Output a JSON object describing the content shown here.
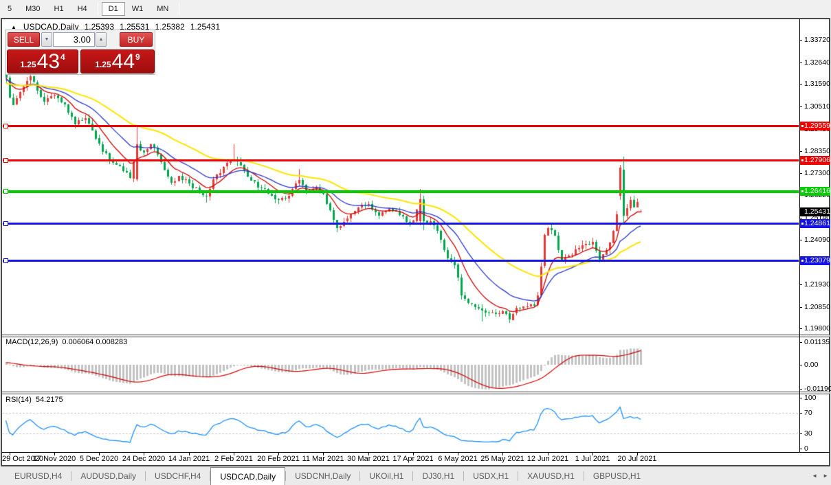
{
  "toolbar": {
    "timeframes": [
      {
        "label": "5",
        "active": false
      },
      {
        "label": "M30",
        "active": false
      },
      {
        "label": "H1",
        "active": false
      },
      {
        "label": "H4",
        "active": false
      },
      {
        "label": "D1",
        "active": true
      },
      {
        "label": "W1",
        "active": false
      },
      {
        "label": "MN",
        "active": false
      }
    ]
  },
  "chart": {
    "collapse_icon": "▲",
    "title": "USDCAD,Daily",
    "ohlc": {
      "open": "1.25393",
      "high": "1.25531",
      "low": "1.25382",
      "close": "1.25431"
    },
    "trade_widget": {
      "sell_label": "SELL",
      "buy_label": "BUY",
      "volume": "3.00",
      "volume_down_icon": "▼",
      "volume_up_icon": "▲",
      "sell_price_prefix": "1.25",
      "sell_price_big": "43",
      "sell_price_sup": "4",
      "buy_price_prefix": "1.25",
      "buy_price_big": "44",
      "buy_price_sup": "9"
    },
    "price_axis_ticks": [
      "1.33720",
      "1.32640",
      "1.31590",
      "1.30510",
      "1.29430",
      "1.28350",
      "1.27300",
      "1.26220",
      "1.25140",
      "1.24090",
      "1.23010",
      "1.21930",
      "1.20850",
      "1.19800"
    ],
    "price_tags": [
      {
        "text": "1.29559",
        "price": 1.29559,
        "bg": "#f20000",
        "handle": true
      },
      {
        "text": "1.27906",
        "price": 1.27906,
        "bg": "#f20000",
        "handle": true
      },
      {
        "text": "1.26416",
        "price": 1.26416,
        "bg": "#00cc00",
        "handle": true
      },
      {
        "text": "1.25431",
        "price": 1.25431,
        "bg": "#000000",
        "handle": false
      },
      {
        "text": "1.24861",
        "price": 1.24861,
        "bg": "#1414e8",
        "handle": true
      },
      {
        "text": "1.23079",
        "price": 1.23079,
        "bg": "#1414e8",
        "handle": true
      }
    ],
    "hlines": [
      {
        "price": 1.29559,
        "color": "#f20000",
        "thickness": 3
      },
      {
        "price": 1.27906,
        "color": "#f20000",
        "thickness": 3
      },
      {
        "price": 1.26416,
        "color": "#00cc00",
        "thickness": 4
      },
      {
        "price": 1.24861,
        "color": "#1414e8",
        "thickness": 3
      },
      {
        "price": 1.23079,
        "color": "#1414e8",
        "thickness": 3
      }
    ],
    "date_labels": [
      [
        "29 Oct 2020",
        1
      ],
      [
        "17 Nov 2020",
        14
      ],
      [
        "5 Dec 2020",
        27
      ],
      [
        "24 Dec 2020",
        40
      ],
      [
        "14 Jan 2021",
        53
      ],
      [
        "2 Feb 2021",
        66
      ],
      [
        "20 Feb 2021",
        79
      ],
      [
        "11 Mar 2021",
        92
      ],
      [
        "30 Mar 2021",
        105
      ],
      [
        "17 Apr 2021",
        118
      ],
      [
        "6 May 2021",
        131
      ],
      [
        "25 May 2021",
        144
      ],
      [
        "12 Jun 2021",
        157
      ],
      [
        "1 Jul 2021",
        170
      ],
      [
        "20 Jul 2021",
        183
      ]
    ],
    "macd": {
      "name": "MACD(12,26,9)",
      "values": "0.006064 0.008283",
      "axis": [
        "0.01135",
        "0.00",
        "-0.011904"
      ]
    },
    "rsi": {
      "name": "RSI(14)",
      "value": "54.2175",
      "axis": [
        "100",
        "70",
        "30",
        "0"
      ],
      "levels": [
        70,
        30
      ]
    }
  },
  "chart_data": {
    "type": "candlestick",
    "symbol": "USDCAD",
    "period": "Daily",
    "visible_range": {
      "price_min": 1.1956,
      "price_max": 1.3451,
      "first_date": "29 Oct 2020",
      "last_date": "20 Jul 2021"
    },
    "candle_count": 185,
    "close_anchors": [
      [
        0,
        1.319
      ],
      [
        1,
        1.3095
      ],
      [
        2,
        1.306
      ],
      [
        4,
        1.312
      ],
      [
        7,
        1.3195
      ],
      [
        9,
        1.313
      ],
      [
        11,
        1.3075
      ],
      [
        14,
        1.3105
      ],
      [
        17,
        1.306
      ],
      [
        20,
        1.2965
      ],
      [
        23,
        1.2995
      ],
      [
        25,
        1.2935
      ],
      [
        27,
        1.287
      ],
      [
        30,
        1.279
      ],
      [
        33,
        1.2763
      ],
      [
        36,
        1.2705
      ],
      [
        38,
        1.287
      ],
      [
        40,
        1.283
      ],
      [
        42,
        1.2868
      ],
      [
        44,
        1.282
      ],
      [
        46,
        1.2745
      ],
      [
        48,
        1.2683
      ],
      [
        50,
        1.2715
      ],
      [
        53,
        1.268
      ],
      [
        56,
        1.2633
      ],
      [
        58,
        1.2618
      ],
      [
        60,
        1.27
      ],
      [
        63,
        1.276
      ],
      [
        66,
        1.2795
      ],
      [
        68,
        1.2768
      ],
      [
        71,
        1.2695
      ],
      [
        74,
        1.2658
      ],
      [
        77,
        1.2622
      ],
      [
        79,
        1.26
      ],
      [
        82,
        1.262
      ],
      [
        85,
        1.2698
      ],
      [
        87,
        1.264
      ],
      [
        90,
        1.266
      ],
      [
        92,
        1.2628
      ],
      [
        94,
        1.255
      ],
      [
        96,
        1.2465
      ],
      [
        99,
        1.251
      ],
      [
        102,
        1.2565
      ],
      [
        105,
        1.258
      ],
      [
        108,
        1.2525
      ],
      [
        111,
        1.2558
      ],
      [
        114,
        1.2528
      ],
      [
        116,
        1.2494
      ],
      [
        118,
        1.25
      ],
      [
        120,
        1.2605
      ],
      [
        121,
        1.25
      ],
      [
        124,
        1.2478
      ],
      [
        126,
        1.2408
      ],
      [
        128,
        1.2318
      ],
      [
        130,
        1.2288
      ],
      [
        132,
        1.214
      ],
      [
        135,
        1.2098
      ],
      [
        138,
        1.2068
      ],
      [
        141,
        1.2058
      ],
      [
        144,
        1.2065
      ],
      [
        146,
        1.2022
      ],
      [
        148,
        1.208
      ],
      [
        151,
        1.2088
      ],
      [
        153,
        1.2092
      ],
      [
        154,
        1.214
      ],
      [
        155,
        1.228
      ],
      [
        156,
        1.243
      ],
      [
        157,
        1.2465
      ],
      [
        159,
        1.2428
      ],
      [
        161,
        1.2308
      ],
      [
        163,
        1.2332
      ],
      [
        166,
        1.2368
      ],
      [
        168,
        1.239
      ],
      [
        170,
        1.2398
      ],
      [
        172,
        1.2312
      ],
      [
        174,
        1.236
      ],
      [
        176,
        1.2452
      ],
      [
        177,
        1.253
      ],
      [
        178,
        1.2755
      ],
      [
        179,
        1.2525
      ],
      [
        180,
        1.256
      ],
      [
        181,
        1.26
      ],
      [
        182,
        1.2565
      ],
      [
        183,
        1.259
      ],
      [
        184,
        1.25431
      ]
    ],
    "candle_overrides": {
      "0": {
        "o": 1.322,
        "h": 1.3243,
        "l": 1.316,
        "c": 1.319
      },
      "7": {
        "h": 1.3235
      },
      "38": {
        "o": 1.27,
        "h": 1.2955,
        "l": 1.269,
        "c": 1.287
      },
      "58": {
        "l": 1.259
      },
      "66": {
        "h": 1.2868
      },
      "85": {
        "h": 1.2749
      },
      "120": {
        "o": 1.25,
        "h": 1.2655,
        "l": 1.248,
        "c": 1.2605
      },
      "121": {
        "o": 1.2605,
        "h": 1.262,
        "l": 1.2455,
        "c": 1.25
      },
      "138": {
        "l": 1.2013
      },
      "146": {
        "l": 1.2007
      },
      "155": {
        "o": 1.2142,
        "l": 1.213,
        "c": 1.228
      },
      "156": {
        "o": 1.228,
        "c": 1.243
      },
      "178": {
        "o": 1.2618,
        "h": 1.2768,
        "l": 1.26,
        "c": 1.2755
      },
      "179": {
        "o": 1.2747,
        "h": 1.2808,
        "l": 1.248,
        "c": 1.2525
      },
      "184": {
        "o": 1.25393,
        "h": 1.25531,
        "l": 1.25382,
        "c": 1.25431
      }
    },
    "colors": {
      "up_candle": "#e53935",
      "down_candle": "#00a54d",
      "ma_fast": "#cc0000",
      "ma_mid": "#2a35cc",
      "ma_slow": "#ffe400",
      "macd_hist": "#c2c2c2",
      "macd_signal": "#d40000",
      "rsi_line": "#1e90ff",
      "rsi_level_dash": "#c9c9c9"
    },
    "moving_averages": [
      {
        "type": "ema",
        "window": 9,
        "colorKey": "ma_fast"
      },
      {
        "type": "ema",
        "window": 20,
        "colorKey": "ma_mid"
      },
      {
        "type": "ema",
        "window": 45,
        "colorKey": "ma_slow"
      }
    ],
    "indicators": {
      "macd": {
        "fast": 12,
        "slow": 26,
        "signal": 9
      },
      "rsi": {
        "period": 14,
        "levels": [
          70,
          30
        ]
      }
    }
  },
  "tabs": {
    "items": [
      {
        "label": "EURUSD,H4",
        "active": false
      },
      {
        "label": "AUDUSD,Daily",
        "active": false
      },
      {
        "label": "USDCHF,H4",
        "active": false
      },
      {
        "label": "USDCAD,Daily",
        "active": true
      },
      {
        "label": "USDCNH,Daily",
        "active": false
      },
      {
        "label": "UKOil,H1",
        "active": false
      },
      {
        "label": "DJ30,H1",
        "active": false
      },
      {
        "label": "USDX,H1",
        "active": false
      },
      {
        "label": "XAUUSD,H1",
        "active": false
      },
      {
        "label": "GBPUSD,H1",
        "active": false
      }
    ],
    "left_arrow": "◄",
    "right_arrow": "►"
  }
}
